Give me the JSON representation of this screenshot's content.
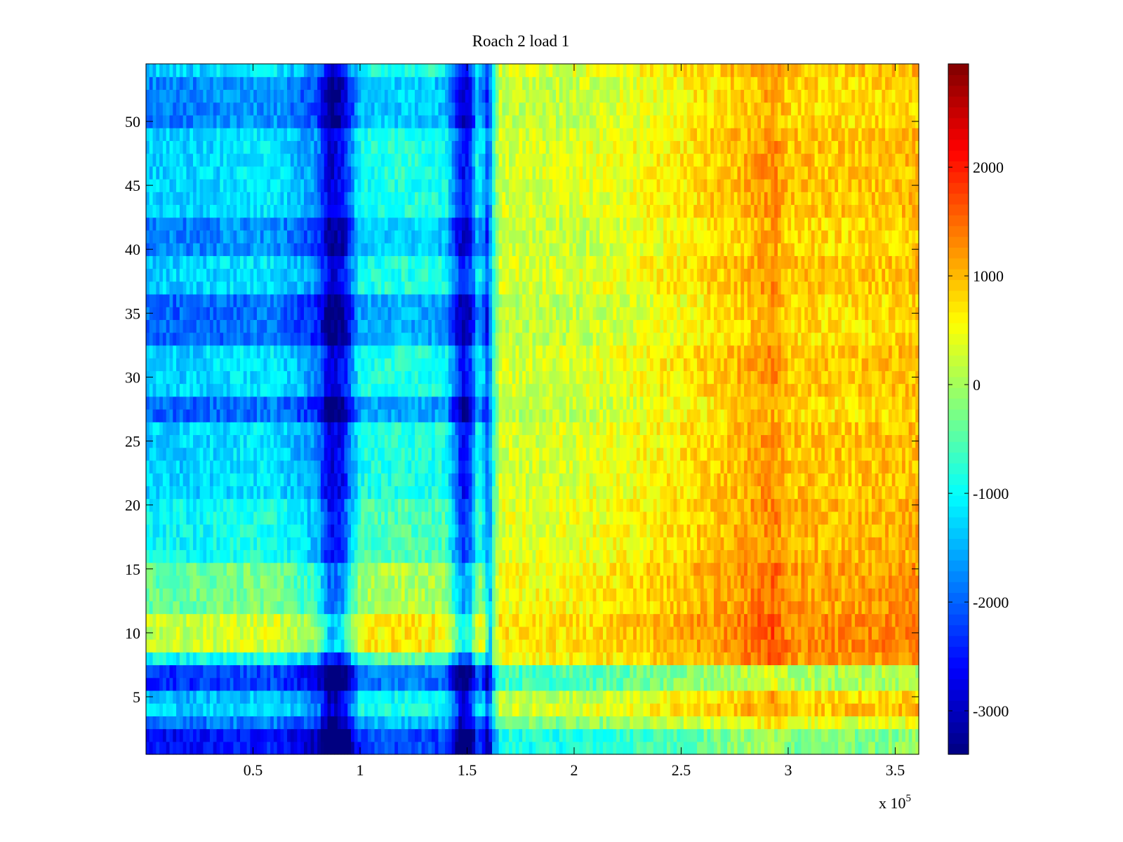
{
  "chart_data": {
    "type": "heatmap",
    "title": "Roach 2 load 1",
    "xlabel": "",
    "ylabel": "",
    "x_multiplier_label": "x 10",
    "x_multiplier_exponent": "5",
    "x_range": [
      0,
      361000
    ],
    "y_range": [
      0.5,
      54.5
    ],
    "x_ticks": [
      0.5,
      1,
      1.5,
      2,
      2.5,
      3,
      3.5
    ],
    "x_tick_labels": [
      "0.5",
      "1",
      "1.5",
      "2",
      "2.5",
      "3",
      "3.5"
    ],
    "y_ticks": [
      5,
      10,
      15,
      20,
      25,
      30,
      35,
      40,
      45,
      50
    ],
    "y_tick_labels": [
      "5",
      "10",
      "15",
      "20",
      "25",
      "30",
      "35",
      "40",
      "45",
      "50"
    ],
    "colorbar": {
      "colormap": "jet",
      "range": [
        -3400,
        2950
      ],
      "ticks": [
        -3000,
        -2000,
        -1000,
        0,
        1000,
        2000
      ],
      "tick_labels": [
        "-3000",
        "-2000",
        "-1000",
        "0",
        "1000",
        "2000"
      ]
    },
    "row_count": 54,
    "grid": false,
    "notes_structure": {
      "x_columns": [
        0,
        20000,
        40000,
        60000,
        80000,
        86000,
        92000,
        100000,
        120000,
        140000,
        148000,
        152000,
        155000,
        158000,
        160000,
        162000,
        165000,
        180000,
        200000,
        220000,
        250000,
        270000,
        285000,
        293000,
        300000,
        330000,
        361000
      ],
      "profile_values": [
        -1300,
        -1300,
        -1200,
        -1150,
        -1700,
        -2900,
        -2600,
        -900,
        -800,
        -900,
        -2600,
        -2200,
        -900,
        -1400,
        -2200,
        -800,
        300,
        300,
        350,
        450,
        700,
        900,
        1100,
        1300,
        950,
        900,
        1000
      ],
      "row_offsets": [
        {
          "rows": [
            1,
            2
          ],
          "offset": -1300
        },
        {
          "rows": [
            3
          ],
          "offset": -600
        },
        {
          "rows": [
            5
          ],
          "offset": -200
        },
        {
          "rows": [
            6,
            7
          ],
          "offset": -1000
        },
        {
          "rows": [
            8
          ],
          "offset": 300
        },
        {
          "rows": [
            9,
            10,
            11
          ],
          "offset": 1500
        },
        {
          "rows": [
            12,
            13,
            14,
            15
          ],
          "offset": 900
        },
        {
          "rows": [
            16,
            17,
            18,
            19,
            20
          ],
          "offset": 300
        },
        {
          "rows": [
            27,
            28
          ],
          "offset": -700
        },
        {
          "rows": [
            33,
            34,
            35,
            36
          ],
          "offset": -700
        },
        {
          "rows": [
            40,
            41,
            42
          ],
          "offset": -500
        },
        {
          "rows": [
            50,
            51,
            52,
            53
          ],
          "offset": -500
        }
      ]
    }
  }
}
